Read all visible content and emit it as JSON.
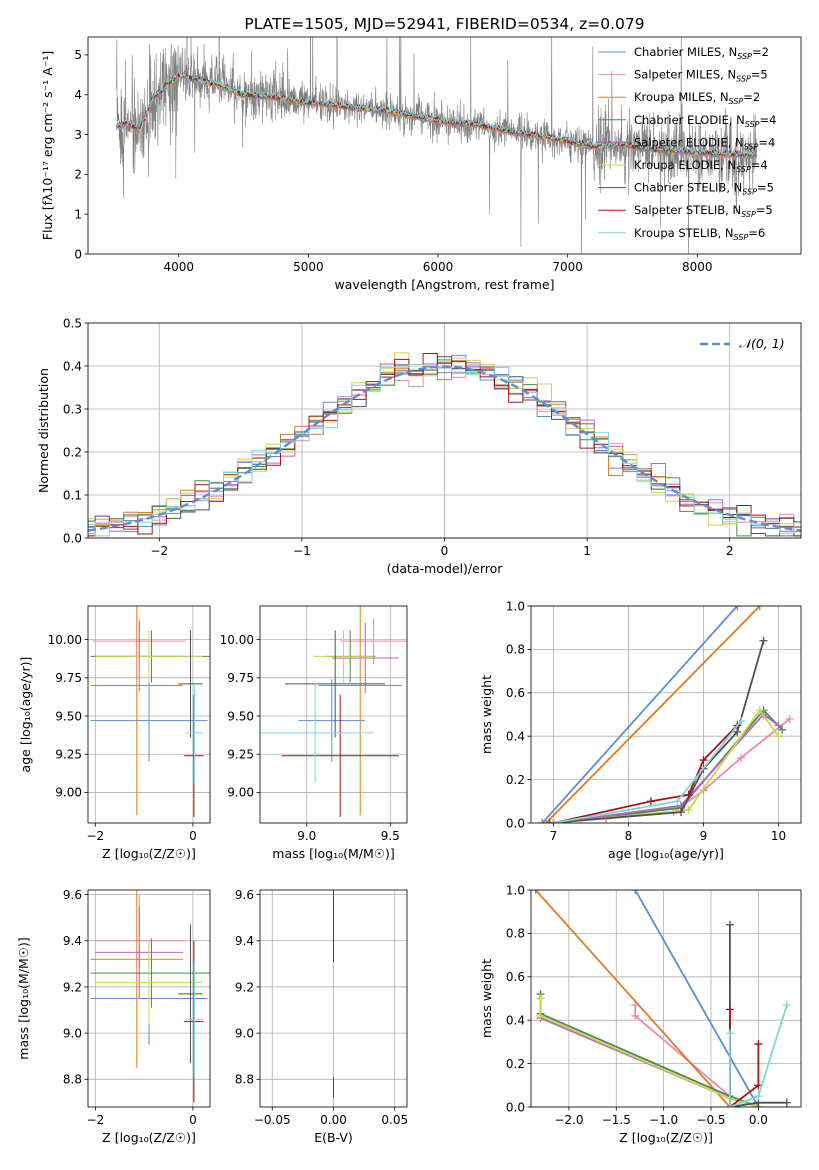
{
  "colors": {
    "spectrum": "#808080",
    "normal": "#5f8dd3",
    "grid": "#b0b0b0",
    "models": [
      "#5f8dd3",
      "#e88ab4",
      "#e07b24",
      "#4c8a4c",
      "#b565c2",
      "#c8d84a",
      "#505050",
      "#a51616",
      "#7fd6d9"
    ]
  },
  "chart_data": [
    {
      "id": "spectrum",
      "type": "line",
      "title": "PLATE=1505, MJD=52941, FIBERID=0534, z=0.079",
      "xlabel": "wavelength [Angstrom, rest frame]",
      "ylabel": "Flux [fλ10⁻¹⁷ erg cm⁻² s⁻¹ A⁻¹]",
      "xlim": [
        3300,
        8800
      ],
      "ylim": [
        0,
        5.45
      ],
      "xticks": [
        4000,
        5000,
        6000,
        7000,
        8000
      ],
      "yticks": [
        0,
        1,
        2,
        3,
        4,
        5
      ],
      "legend_position": "top-right",
      "continuum": {
        "x": [
          3520,
          3600,
          3700,
          3800,
          3900,
          4000,
          4100,
          4300,
          4500,
          4700,
          5000,
          5300,
          5600,
          6000,
          6300,
          6600,
          6900,
          7200,
          7400,
          7600,
          7800,
          8000,
          8200,
          8300
        ],
        "y": [
          3.2,
          3.3,
          3.1,
          3.9,
          4.2,
          4.5,
          4.4,
          4.25,
          4.0,
          3.95,
          3.8,
          3.7,
          3.6,
          3.35,
          3.25,
          3.05,
          2.9,
          2.7,
          2.75,
          2.65,
          2.6,
          2.55,
          2.5,
          2.5
        ]
      },
      "data_range": [
        3520,
        8460
      ],
      "series": [
        {
          "name": "Chabrier MILES, N_SSP=2",
          "label_main": "Chabrier MILES, N",
          "label_sub": "SSP",
          "label_tail": "=2"
        },
        {
          "name": "Salpeter MILES, N_SSP=5",
          "label_main": "Salpeter MILES, N",
          "label_sub": "SSP",
          "label_tail": "=5"
        },
        {
          "name": "Kroupa MILES, N_SSP=2",
          "label_main": "Kroupa MILES, N",
          "label_sub": "SSP",
          "label_tail": "=2"
        },
        {
          "name": "Chabrier ELODIE, N_SSP=4",
          "label_main": "Chabrier ELODIE, N",
          "label_sub": "SSP",
          "label_tail": "=4"
        },
        {
          "name": "Salpeter ELODIE, N_SSP=4",
          "label_main": "Salpeter ELODIE, N",
          "label_sub": "SSP",
          "label_tail": "=4"
        },
        {
          "name": "Kroupa ELODIE, N_SSP=4",
          "label_main": "Kroupa ELODIE, N",
          "label_sub": "SSP",
          "label_tail": "=4"
        },
        {
          "name": "Chabrier STELIB, N_SSP=5",
          "label_main": "Chabrier STELIB, N",
          "label_sub": "SSP",
          "label_tail": "=5"
        },
        {
          "name": "Salpeter STELIB, N_SSP=5",
          "label_main": "Salpeter STELIB, N",
          "label_sub": "SSP",
          "label_tail": "=5"
        },
        {
          "name": "Kroupa STELIB, N_SSP=6",
          "label_main": "Kroupa STELIB, N",
          "label_sub": "SSP",
          "label_tail": "=6"
        }
      ]
    },
    {
      "id": "residuals",
      "type": "histogram",
      "xlabel": "(data-model)/error",
      "ylabel": "Normed distribution",
      "xlim": [
        -2.5,
        2.5
      ],
      "ylim": [
        0,
        0.5
      ],
      "xticks": [
        -2,
        -1,
        0,
        1,
        2
      ],
      "yticks": [
        0.0,
        0.1,
        0.2,
        0.3,
        0.4,
        0.5
      ],
      "bin_width": 0.1,
      "legend": "𝒩(0, 1)",
      "legend_position": "top-right",
      "grid": true
    },
    {
      "id": "age_vs_Z",
      "type": "errorbar",
      "xlabel": "Z [log₁₀(Z/Z☉)]",
      "ylabel": "age  [log₁₀(age/yr)]",
      "xlim": [
        -2.15,
        0.35
      ],
      "ylim": [
        8.8,
        10.22
      ],
      "xticks": [
        -2,
        0
      ],
      "yticks": [
        9.0,
        9.25,
        9.5,
        9.75,
        10.0
      ],
      "grid": true,
      "points": [
        {
          "x": -0.9,
          "xerr": 1.2,
          "y": 9.47,
          "yerr": 0.27
        },
        {
          "x": -1.1,
          "xerr": 0.95,
          "y": 9.99,
          "yerr": 0.15
        },
        {
          "x": -1.15,
          "xerr": 0.95,
          "y": 9.7,
          "yerr": 0.85
        },
        {
          "x": -0.85,
          "xerr": 1.25,
          "y": 9.89,
          "yerr": 0.17
        },
        {
          "x": -1.1,
          "xerr": 0.9,
          "y": 9.89,
          "yerr": 0.23
        },
        {
          "x": -0.9,
          "xerr": 1.1,
          "y": 9.89,
          "yerr": 0.17
        },
        {
          "x": -0.05,
          "xerr": 0.25,
          "y": 9.71,
          "yerr": 0.35
        },
        {
          "x": 0.02,
          "xerr": 0.2,
          "y": 9.24,
          "yerr": 0.4
        },
        {
          "x": 0.03,
          "xerr": 0.18,
          "y": 9.39,
          "yerr": 0.33
        }
      ]
    },
    {
      "id": "age_vs_mass",
      "type": "errorbar",
      "xlabel": "mass [log₁₀(M/M☉)]",
      "ylabel": "",
      "xlim": [
        8.72,
        9.6
      ],
      "ylim": [
        8.8,
        10.22
      ],
      "xticks": [
        9.0,
        9.5
      ],
      "yticks": [
        9.0,
        9.25,
        9.5,
        9.75,
        10.0
      ],
      "grid": true,
      "points": [
        {
          "x": 9.15,
          "xerr": 0.2,
          "y": 9.47,
          "yerr": 0.27
        },
        {
          "x": 9.4,
          "xerr": 0.2,
          "y": 9.99,
          "yerr": 0.15
        },
        {
          "x": 9.32,
          "xerr": 0.25,
          "y": 9.7,
          "yerr": 0.85
        },
        {
          "x": 9.26,
          "xerr": 0.15,
          "y": 9.89,
          "yerr": 0.17
        },
        {
          "x": 9.35,
          "xerr": 0.2,
          "y": 9.88,
          "yerr": 0.23
        },
        {
          "x": 9.22,
          "xerr": 0.18,
          "y": 9.89,
          "yerr": 0.17
        },
        {
          "x": 9.17,
          "xerr": 0.3,
          "y": 9.71,
          "yerr": 0.35
        },
        {
          "x": 9.2,
          "xerr": 0.35,
          "y": 9.24,
          "yerr": 0.4
        },
        {
          "x": 9.05,
          "xerr": 0.35,
          "y": 9.39,
          "yerr": 0.33
        }
      ]
    },
    {
      "id": "weight_vs_age",
      "type": "line",
      "xlabel": "age  [log₁₀(age/yr)]",
      "ylabel": "mass weight",
      "xlim": [
        6.7,
        10.3
      ],
      "ylim": [
        0,
        1.0
      ],
      "xticks": [
        7,
        8,
        9,
        10
      ],
      "yticks": [
        0.0,
        0.2,
        0.4,
        0.6,
        0.8,
        1.0
      ],
      "grid": true,
      "series": [
        {
          "x": [
            6.85,
            9.45
          ],
          "y": [
            0.0,
            1.0
          ]
        },
        {
          "x": [
            7.7,
            8.6,
            9.0,
            9.5,
            10.15
          ],
          "y": [
            0.02,
            0.05,
            0.15,
            0.3,
            0.48
          ]
        },
        {
          "x": [
            6.9,
            9.75
          ],
          "y": [
            0.0,
            1.0
          ]
        },
        {
          "x": [
            7.0,
            8.7,
            9.8,
            10.05
          ],
          "y": [
            0.0,
            0.07,
            0.52,
            0.43
          ]
        },
        {
          "x": [
            7.0,
            8.7,
            9.8,
            10.0
          ],
          "y": [
            0.0,
            0.08,
            0.5,
            0.45
          ]
        },
        {
          "x": [
            7.0,
            8.8,
            9.75,
            10.0
          ],
          "y": [
            0.0,
            0.06,
            0.52,
            0.4
          ]
        },
        {
          "x": [
            6.95,
            8.7,
            9.0,
            9.45,
            9.8
          ],
          "y": [
            0.0,
            0.05,
            0.25,
            0.42,
            0.84
          ]
        },
        {
          "x": [
            7.0,
            8.3,
            8.8,
            9.0,
            9.45
          ],
          "y": [
            0.0,
            0.1,
            0.13,
            0.29,
            0.45
          ]
        },
        {
          "x": [
            7.0,
            8.65,
            9.5
          ],
          "y": [
            0.0,
            0.1,
            0.47
          ]
        }
      ]
    },
    {
      "id": "mass_vs_Z",
      "type": "errorbar",
      "xlabel": "Z [log₁₀(Z/Z☉)]",
      "ylabel": "mass [log₁₀(M/M☉)]",
      "xlim": [
        -2.15,
        0.35
      ],
      "ylim": [
        8.68,
        9.62
      ],
      "xticks": [
        -2,
        0
      ],
      "yticks": [
        8.8,
        9.0,
        9.2,
        9.4,
        9.6
      ],
      "grid": true,
      "points": [
        {
          "x": -0.9,
          "xerr": 1.2,
          "y": 9.15,
          "yerr": 0.2
        },
        {
          "x": -1.1,
          "xerr": 0.95,
          "y": 9.4,
          "yerr": 0.2
        },
        {
          "x": -1.15,
          "xerr": 0.95,
          "y": 9.32,
          "yerr": 0.47
        },
        {
          "x": -0.85,
          "xerr": 1.25,
          "y": 9.26,
          "yerr": 0.15
        },
        {
          "x": -1.1,
          "xerr": 0.9,
          "y": 9.35,
          "yerr": 0.2
        },
        {
          "x": -0.9,
          "xerr": 1.1,
          "y": 9.22,
          "yerr": 0.18
        },
        {
          "x": -0.05,
          "xerr": 0.25,
          "y": 9.17,
          "yerr": 0.3
        },
        {
          "x": 0.02,
          "xerr": 0.2,
          "y": 9.05,
          "yerr": 0.35
        },
        {
          "x": 0.03,
          "xerr": 0.18,
          "y": 9.06,
          "yerr": 0.25
        }
      ]
    },
    {
      "id": "mass_vs_ebv",
      "type": "errorbar",
      "xlabel": "E(B-V)",
      "ylabel": "",
      "xlim": [
        -0.06,
        0.06
      ],
      "ylim": [
        8.68,
        9.62
      ],
      "xticks": [
        -0.05,
        0.0,
        0.05
      ],
      "xtick_labels": [
        "−0.05",
        "0.00",
        "0.05"
      ],
      "yticks": [
        8.8,
        9.0,
        9.2,
        9.4,
        9.6
      ],
      "grid": true,
      "points": [
        {
          "x": 0.0,
          "xerr": 0.0,
          "y": 9.15,
          "yerr": 0.2
        },
        {
          "x": 0.0,
          "xerr": 0.0,
          "y": 9.4,
          "yerr": 0.15
        },
        {
          "x": 0.0,
          "xerr": 0.0,
          "y": 9.32,
          "yerr": 0.25
        },
        {
          "x": 0.0,
          "xerr": 0.0,
          "y": 9.26,
          "yerr": 0.15
        },
        {
          "x": 0.0,
          "xerr": 0.0,
          "y": 9.35,
          "yerr": 0.2
        },
        {
          "x": 0.0,
          "xerr": 0.0,
          "y": 9.22,
          "yerr": 0.18
        },
        {
          "x": 0.0,
          "xerr": 0.0,
          "y": 9.17,
          "yerr": 0.45
        },
        {
          "x": 0.0,
          "xerr": 0.0,
          "y": 9.3,
          "yerr": 0.27
        },
        {
          "x": 0.0,
          "xerr": 0.0,
          "y": 9.06,
          "yerr": 0.25
        }
      ]
    },
    {
      "id": "weight_vs_Z",
      "type": "line",
      "xlabel": "Z [log₁₀(Z/Z☉)]",
      "ylabel": "mass weight",
      "xlim": [
        -2.4,
        0.45
      ],
      "ylim": [
        0,
        1.0
      ],
      "xticks": [
        -2.0,
        -1.5,
        -1.0,
        -0.5,
        0.0
      ],
      "xtick_labels": [
        "−2.0",
        "−1.5",
        "−1.0",
        "−0.5",
        "0.0"
      ],
      "yticks": [
        0.0,
        0.2,
        0.4,
        0.6,
        0.8,
        1.0
      ],
      "grid": true,
      "series": [
        {
          "x": [
            -1.3,
            0.0
          ],
          "y": [
            1.0,
            0.0
          ]
        },
        {
          "x": [
            -1.3,
            -1.3,
            -0.3,
            0.0
          ],
          "y": [
            0.47,
            0.42,
            0.05,
            0.0
          ]
        },
        {
          "x": [
            -2.35,
            -0.3
          ],
          "y": [
            1.0,
            0.0
          ]
        },
        {
          "x": [
            -2.3,
            -2.3,
            -0.3,
            0.0
          ],
          "y": [
            0.52,
            0.43,
            0.05,
            0.0
          ]
        },
        {
          "x": [
            -2.3,
            -2.3,
            -0.3,
            0.0
          ],
          "y": [
            0.5,
            0.41,
            0.04,
            0.0
          ]
        },
        {
          "x": [
            -2.3,
            -2.3,
            -0.3,
            0.0
          ],
          "y": [
            0.5,
            0.42,
            0.04,
            0.0
          ]
        },
        {
          "x": [
            -0.3,
            -0.3,
            0.0,
            0.3
          ],
          "y": [
            0.84,
            0.0,
            0.02,
            0.02
          ]
        },
        {
          "x": [
            -0.3,
            -0.3,
            0.0,
            0.0
          ],
          "y": [
            0.45,
            0.0,
            0.1,
            0.29
          ]
        },
        {
          "x": [
            -0.3,
            -0.3,
            0.0,
            0.3
          ],
          "y": [
            0.34,
            0.0,
            0.05,
            0.47
          ]
        }
      ]
    }
  ]
}
